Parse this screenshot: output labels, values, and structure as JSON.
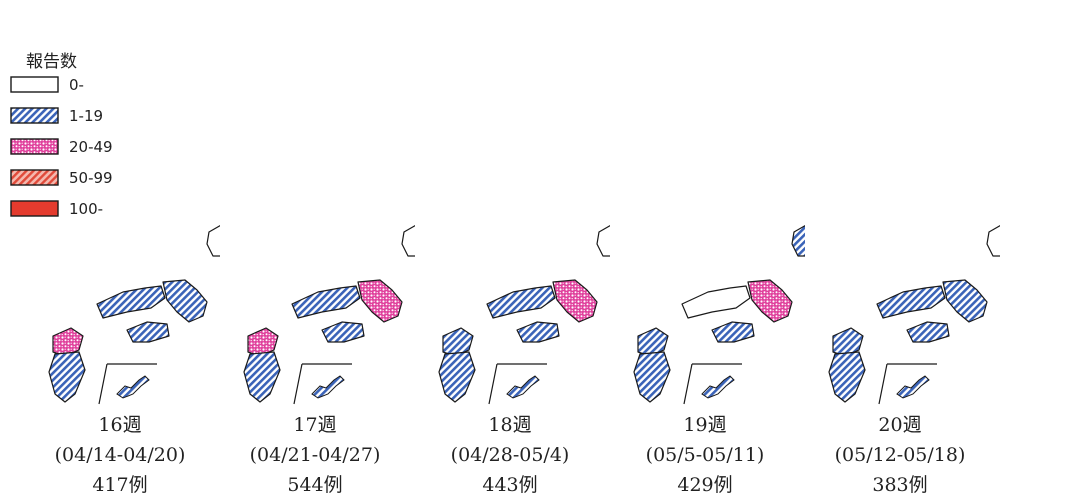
{
  "legend": {
    "title": "報告数",
    "items": [
      {
        "key": "c0",
        "label": "0-"
      },
      {
        "key": "c1",
        "label": "1-19"
      },
      {
        "key": "c2",
        "label": "20-49"
      },
      {
        "key": "c3",
        "label": "50-99"
      },
      {
        "key": "c4",
        "label": "100-"
      }
    ]
  },
  "colors": {
    "outline": "#1a1a1a",
    "c1": "#3a63b8",
    "c2": "#e0409c",
    "c3": "#e04a3a",
    "c4": "#e43b2e"
  },
  "maps": [
    {
      "week": "16週",
      "range": "(04/14-04/20)",
      "count": "417例",
      "hokkaido": "c4",
      "kanto": "c4",
      "kyushu_north": "c2",
      "kinki": "c1",
      "tokai": "c2",
      "chugoku": "c1",
      "tohoku": "c1"
    },
    {
      "week": "17週",
      "range": "(04/21-04/27)",
      "count": "544例",
      "hokkaido": "c4",
      "kanto": "c4",
      "kyushu_north": "c2",
      "kinki": "c2",
      "tokai": "c2",
      "chugoku": "c1",
      "tohoku": "c1"
    },
    {
      "week": "18週",
      "range": "(04/28-05/4)",
      "count": "443例",
      "hokkaido": "c4",
      "kanto": "c4",
      "kyushu_north": "c1",
      "kinki": "c2",
      "tokai": "c1",
      "chugoku": "c1",
      "tohoku": "c1"
    },
    {
      "week": "19週",
      "range": "(05/5-05/11)",
      "count": "429例",
      "hokkaido": "c3",
      "kanto": "c4",
      "kyushu_north": "c1",
      "kinki": "c2",
      "tokai": "c2",
      "chugoku": "c0",
      "tohoku": "c0"
    },
    {
      "week": "20週",
      "range": "(05/12-05/18)",
      "count": "383例",
      "hokkaido": "c4",
      "kanto": "c4",
      "kyushu_north": "c1",
      "kinki": "c1",
      "tokai": "c2",
      "chugoku": "c1",
      "tohoku": "c1"
    }
  ]
}
